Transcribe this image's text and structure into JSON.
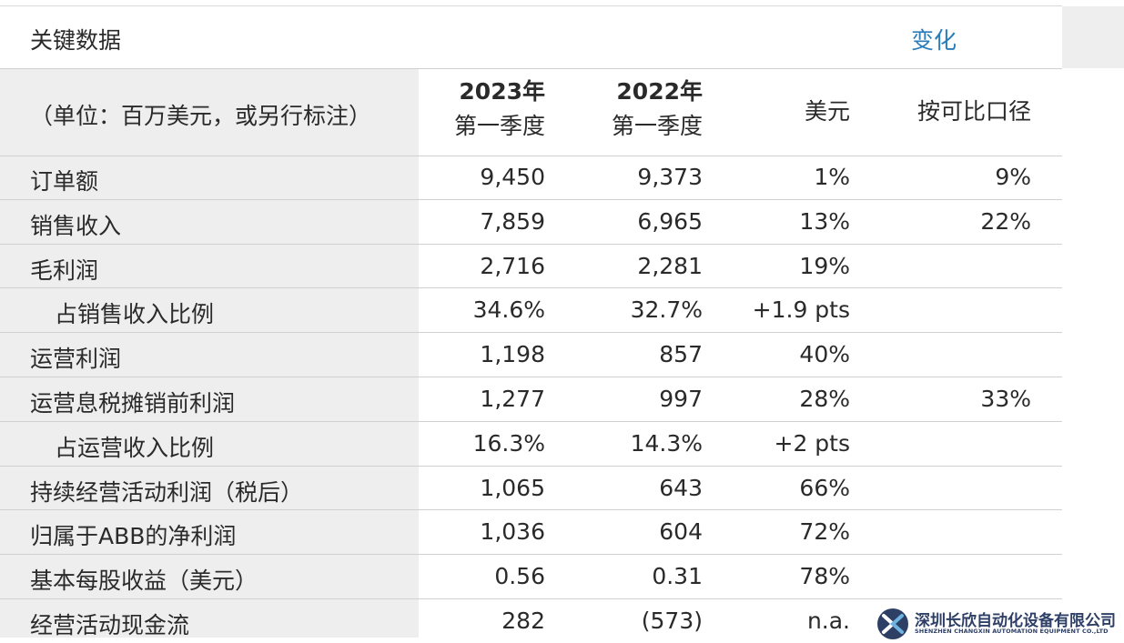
{
  "title": "关键数据",
  "change_label": "变化",
  "header": {
    "unit": "（单位：百万美元，或另行标注）",
    "col_2023_year": "2023年",
    "col_2023_quarter": "第一季度",
    "col_2022_year": "2022年",
    "col_2022_quarter": "第一季度",
    "col_usd": "美元",
    "col_comparable": "按可比口径"
  },
  "rows": [
    {
      "label": "订单额",
      "v2023": "9,450",
      "v2022": "9,373",
      "usd": "1%",
      "comparable": "9%"
    },
    {
      "label": "销售收入",
      "v2023": "7,859",
      "v2022": "6,965",
      "usd": "13%",
      "comparable": "22%"
    },
    {
      "label": "毛利润",
      "v2023": "2,716",
      "v2022": "2,281",
      "usd": "19%",
      "comparable": ""
    },
    {
      "label": "占销售收入比例",
      "v2023": "34.6%",
      "v2022": "32.7%",
      "usd": "+1.9 pts",
      "comparable": ""
    },
    {
      "label": "运营利润",
      "v2023": "1,198",
      "v2022": "857",
      "usd": "40%",
      "comparable": ""
    },
    {
      "label": "运营息税摊销前利润",
      "v2023": "1,277",
      "v2022": "997",
      "usd": "28%",
      "comparable": "33%"
    },
    {
      "label": "占运营收入比例",
      "v2023": "16.3%",
      "v2022": "14.3%",
      "usd": "+2 pts",
      "comparable": ""
    },
    {
      "label": "持续经营活动利润（税后）",
      "v2023": "1,065",
      "v2022": "643",
      "usd": "66%",
      "comparable": ""
    },
    {
      "label": "归属于ABB的净利润",
      "v2023": "1,036",
      "v2022": "604",
      "usd": "72%",
      "comparable": ""
    },
    {
      "label": "基本每股收益（美元）",
      "v2023": "0.56",
      "v2022": "0.31",
      "usd": "78%",
      "comparable": ""
    },
    {
      "label": "经营活动现金流",
      "v2023": "282",
      "v2022": "(573)",
      "usd": "n.a.",
      "comparable": ""
    }
  ],
  "watermark": {
    "name_cn": "深圳长欣自动化设备有限公司",
    "name_en": "SHENZHEN CHANGXIN AUTOMATION EQUIPMENT CO.,LTD"
  }
}
